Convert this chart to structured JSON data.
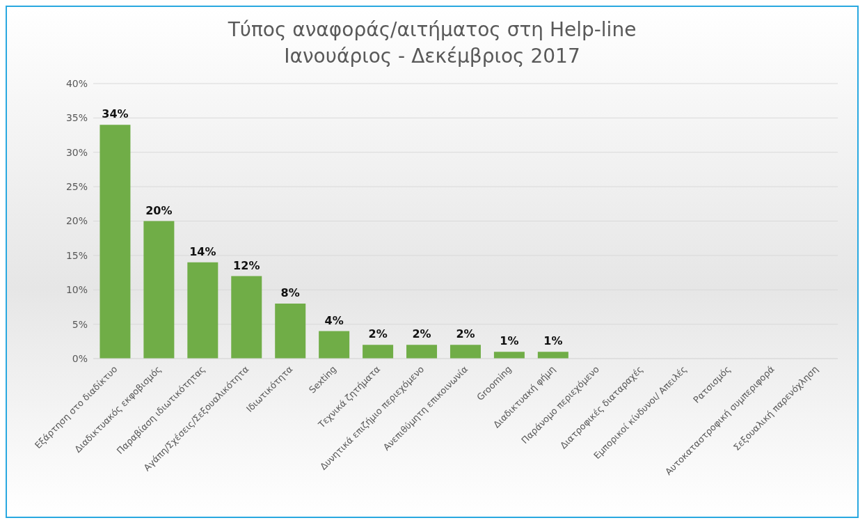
{
  "chart_data": {
    "type": "bar",
    "title": "Τύπος αναφοράς/αιτήματος στη Help-line",
    "subtitle": "Ιανουάριος - Δεκέμβριος 2017",
    "categories": [
      "Εξάρτηση στο διαδίκτυο",
      "Διαδικτυακός εκφοβισμός",
      "Παραβίαση ιδιωτικότητας",
      "Αγάπη/Σχέσεις/Σεξουαλικότητα",
      "Ιδιωτικότητα",
      "Sexting",
      "Τεχνικά ζητήματα",
      "Δυνητικά επιζήμιο περιεχόμενο",
      "Ανεπιθύμητη επικοινωνία",
      "Grooming",
      "Διαδικτυακή φήμη",
      "Παράνομο περιεχόμενο",
      "Διατροφικές διαταραχές",
      "Εμπορικοί κίνδυνοι/ Απειλές",
      "Ρατσισμός",
      "Αυτοκαταστροφική συμπεριφορά",
      "Σεξουαλική παρενόχληση"
    ],
    "values": [
      34,
      20,
      14,
      12,
      8,
      4,
      2,
      2,
      2,
      1,
      1,
      0,
      0,
      0,
      0,
      0,
      0
    ],
    "value_labels": [
      "34%",
      "20%",
      "14%",
      "12%",
      "8%",
      "4%",
      "2%",
      "2%",
      "2%",
      "1%",
      "1%",
      null,
      null,
      null,
      null,
      null,
      null
    ],
    "color": "#70ad47",
    "ylim": [
      0,
      40
    ],
    "yticks": [
      {
        "value": 0,
        "label": "0%"
      },
      {
        "value": 5,
        "label": "5%"
      },
      {
        "value": 10,
        "label": "10%"
      },
      {
        "value": 15,
        "label": "15%"
      },
      {
        "value": 20,
        "label": "20%"
      },
      {
        "value": 25,
        "label": "25%"
      },
      {
        "value": 30,
        "label": "30%"
      },
      {
        "value": 35,
        "label": "35%"
      },
      {
        "value": 40,
        "label": "40%"
      }
    ],
    "grid": "y",
    "legend": false
  }
}
